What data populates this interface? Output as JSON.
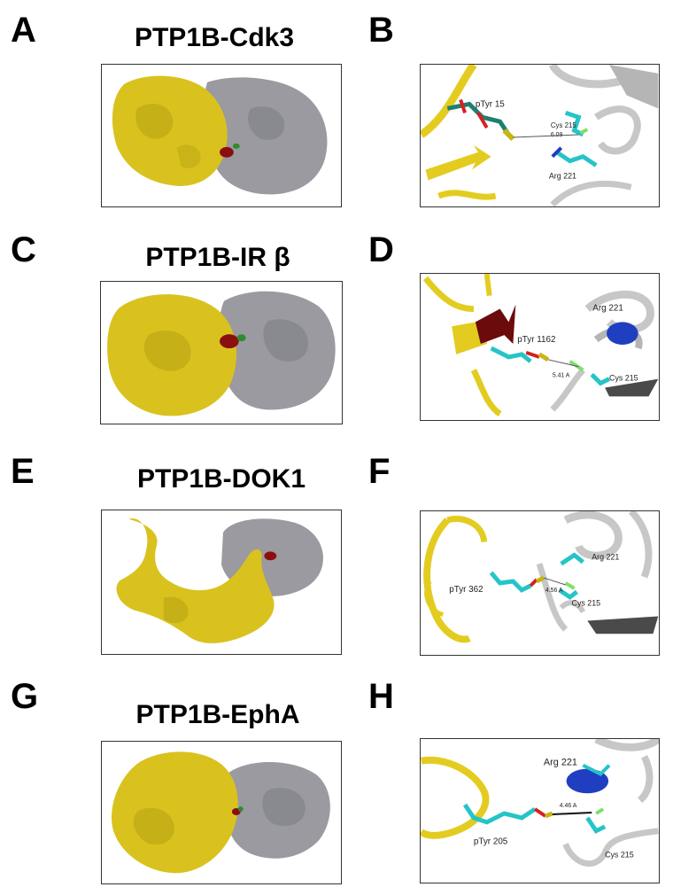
{
  "panels": {
    "A": {
      "letter": "A",
      "title": "PTP1B-Cdk3"
    },
    "B": {
      "letter": "B",
      "residue_ptyr": "pTyr 15",
      "residue_cys": "Cys 215",
      "distance": "6.09",
      "residue_arg": "Arg 221"
    },
    "C": {
      "letter": "C",
      "title": "PTP1B-IR β"
    },
    "D": {
      "letter": "D",
      "residue_ptyr": "pTyr 1162",
      "residue_arg": "Arg 221",
      "distance": "5.41 A",
      "residue_cys": "Cys 215"
    },
    "E": {
      "letter": "E",
      "title": "PTP1B-DOK1"
    },
    "F": {
      "letter": "F",
      "residue_ptyr": "pTyr 362",
      "residue_arg": "Arg 221",
      "distance": "4.56 A",
      "residue_cys": "Cys 215"
    },
    "G": {
      "letter": "G",
      "title": "PTP1B-EphA"
    },
    "H": {
      "letter": "H",
      "residue_arg": "Arg 221",
      "distance": "4.46 A",
      "residue_ptyr": "pTyr 205",
      "residue_cys": "Cys 215"
    }
  },
  "colors": {
    "ptp1b_surface": "#d9c21e",
    "partner_surface": "#9a9aa0",
    "interface_red": "#8b0f0f",
    "interface_green": "#2e8b2e",
    "ribbon_yellow": "#e3cc1f",
    "ribbon_gray": "#c7c7c7",
    "stick_cyan": "#25c4c8",
    "helix_blue": "#1f3fc0"
  }
}
